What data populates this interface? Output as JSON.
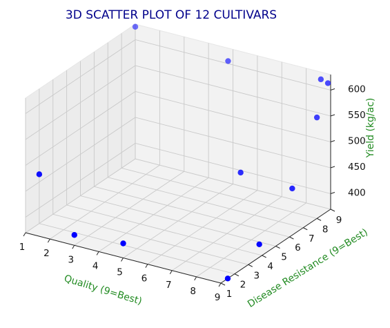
{
  "chart_data": {
    "type": "scatter",
    "title": "3D SCATTER PLOT OF 12 CULTIVARS",
    "xlabel": "Quality (9=Best)",
    "ylabel": "Disease Resistance (9=Best)",
    "zlabel": "Yield (kg/ac)",
    "x_ticks": [
      "1",
      "2",
      "3",
      "4",
      "5",
      "6",
      "7",
      "8",
      "9"
    ],
    "y_ticks": [
      "1",
      "2",
      "3",
      "4",
      "5",
      "6",
      "7",
      "8",
      "9"
    ],
    "z_ticks": [
      "400",
      "450",
      "500",
      "550",
      "600"
    ],
    "xlim": [
      1,
      9
    ],
    "ylim": [
      1,
      9
    ],
    "zlim": [
      370,
      630
    ],
    "grid": true,
    "marker_color": "#0000ff",
    "title_color": "#00008b",
    "label_color": "#228b22",
    "pane_color": "#f2f2f2",
    "points": [
      {
        "x": 1.0,
        "y": 9.0,
        "z": 625
      },
      {
        "x": 4.8,
        "y": 9.0,
        "z": 605
      },
      {
        "x": 8.6,
        "y": 9.0,
        "z": 616
      },
      {
        "x": 9.0,
        "y": 8.8,
        "z": 617
      },
      {
        "x": 9.0,
        "y": 8.0,
        "z": 565
      },
      {
        "x": 7.0,
        "y": 6.0,
        "z": 470
      },
      {
        "x": 9.0,
        "y": 6.2,
        "z": 460
      },
      {
        "x": 1.0,
        "y": 2.0,
        "z": 465
      },
      {
        "x": 3.0,
        "y": 1.0,
        "z": 390
      },
      {
        "x": 5.0,
        "y": 1.0,
        "z": 398
      },
      {
        "x": 9.0,
        "y": 1.5,
        "z": 370
      },
      {
        "x": 9.0,
        "y": 3.8,
        "z": 395
      }
    ]
  }
}
